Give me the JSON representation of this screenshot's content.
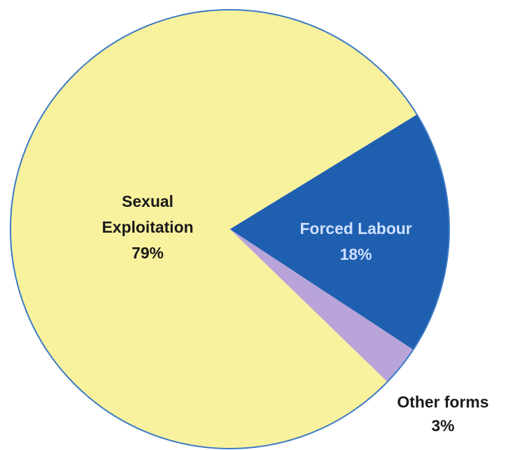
{
  "chart_data": {
    "type": "pie",
    "title": "",
    "slices": [
      {
        "label": "Sexual Exploitation",
        "label_lines": [
          "Sexual",
          "Exploitation"
        ],
        "value": 79,
        "value_text": "79%",
        "color": "#f8f29e",
        "text_color": "#1a1a1a"
      },
      {
        "label": "Forced Labour",
        "label_lines": [
          "Forced Labour"
        ],
        "value": 18,
        "value_text": "18%",
        "color": "#1f5fb0",
        "text_color": "#cfe0ff"
      },
      {
        "label": "Other forms",
        "label_lines": [
          "Other forms"
        ],
        "value": 3,
        "value_text": "3%",
        "color": "#b8a4d8",
        "text_color": "#1a1a1a"
      }
    ],
    "outline_color": "#3b7ac4",
    "legend": "none"
  }
}
